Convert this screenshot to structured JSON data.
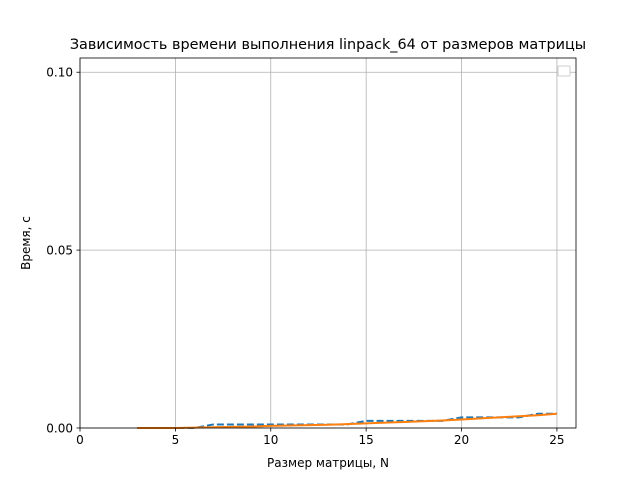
{
  "chart_data": {
    "type": "line",
    "title": "Зависимость времени выполнения linpack_64 от размеров матрицы",
    "xlabel": "Размер матрицы, N",
    "ylabel": "Время, с",
    "xlim": [
      0,
      26
    ],
    "ylim": [
      0,
      0.104
    ],
    "xticks": [
      0,
      5,
      10,
      15,
      20,
      25
    ],
    "xtick_labels": [
      "0",
      "5",
      "10",
      "15",
      "20",
      "25"
    ],
    "yticks": [
      0,
      0.05,
      0.1
    ],
    "ytick_labels": [
      "0.00",
      "0.05",
      "0.10"
    ],
    "grid": true,
    "legend": "top-right",
    "series": [
      {
        "style": "dashed",
        "color": "#1f77b4",
        "x": [
          3,
          4,
          5,
          6,
          7,
          8,
          9,
          10,
          11,
          12,
          13,
          14,
          15,
          16,
          17,
          18,
          19,
          20,
          21,
          22,
          23,
          24,
          25
        ],
        "y": [
          0,
          0,
          0,
          0,
          0.001,
          0.001,
          0.001,
          0.001,
          0.001,
          0.001,
          0.001,
          0.001,
          0.002,
          0.002,
          0.002,
          0.002,
          0.002,
          0.003,
          0.003,
          0.003,
          0.003,
          0.004,
          0.004
        ]
      },
      {
        "style": "solid",
        "color": "#ff7f0e",
        "x": [
          3,
          4,
          5,
          6,
          7,
          8,
          9,
          10,
          11,
          12,
          13,
          14,
          15,
          16,
          17,
          18,
          19,
          20,
          21,
          22,
          23,
          24,
          25
        ],
        "y": [
          0,
          0,
          0,
          0.0001,
          0.0002,
          0.0003,
          0.0004,
          0.0006,
          0.0007,
          0.0008,
          0.0009,
          0.0011,
          0.0013,
          0.0015,
          0.0017,
          0.0019,
          0.0021,
          0.0024,
          0.0027,
          0.003,
          0.0033,
          0.0036,
          0.004
        ]
      }
    ]
  }
}
